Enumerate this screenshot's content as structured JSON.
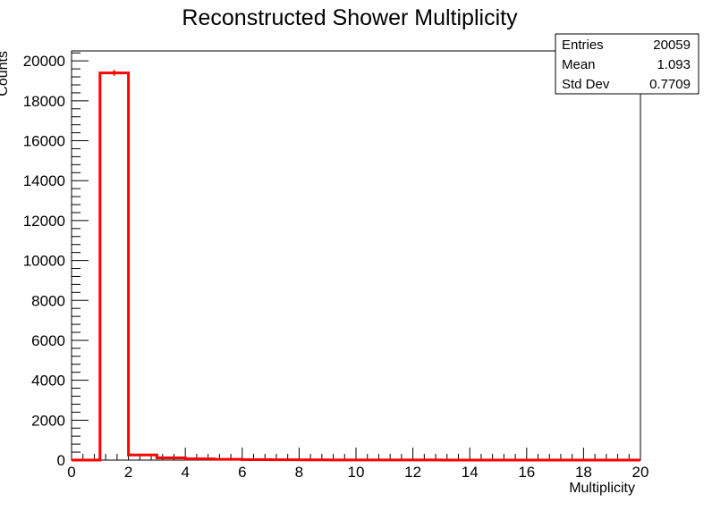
{
  "chart_data": {
    "type": "bar",
    "title": "Reconstructed Shower Multiplicity",
    "xlabel": "Multiplicity",
    "ylabel": "Counts",
    "xlim": [
      0,
      20
    ],
    "ylim": [
      0,
      20500
    ],
    "x_ticks": [
      0,
      2,
      4,
      6,
      8,
      10,
      12,
      14,
      16,
      18,
      20
    ],
    "y_ticks": [
      0,
      2000,
      4000,
      6000,
      8000,
      10000,
      12000,
      14000,
      16000,
      18000,
      20000
    ],
    "bin_width": 1,
    "bins": [
      {
        "x_low": 0,
        "value": 0
      },
      {
        "x_low": 1,
        "value": 19400
      },
      {
        "x_low": 2,
        "value": 260
      },
      {
        "x_low": 3,
        "value": 110
      },
      {
        "x_low": 4,
        "value": 60
      },
      {
        "x_low": 5,
        "value": 40
      },
      {
        "x_low": 6,
        "value": 20
      },
      {
        "x_low": 7,
        "value": 15
      },
      {
        "x_low": 8,
        "value": 10
      },
      {
        "x_low": 9,
        "value": 8
      },
      {
        "x_low": 10,
        "value": 5
      },
      {
        "x_low": 11,
        "value": 4
      },
      {
        "x_low": 12,
        "value": 3
      },
      {
        "x_low": 13,
        "value": 2
      },
      {
        "x_low": 14,
        "value": 2
      },
      {
        "x_low": 15,
        "value": 1
      },
      {
        "x_low": 16,
        "value": 1
      },
      {
        "x_low": 17,
        "value": 0
      },
      {
        "x_low": 18,
        "value": 0
      },
      {
        "x_low": 19,
        "value": 0
      }
    ],
    "error_bars": [
      {
        "x_center": 1.5,
        "value": 19400,
        "error": 140
      }
    ],
    "line_color": "#ff0000",
    "grid": false,
    "legend": "none",
    "stats_box": {
      "position": "top-right",
      "rows": [
        {
          "label": "Entries",
          "value": "20059"
        },
        {
          "label": "Mean",
          "value": "1.093"
        },
        {
          "label": "Std Dev",
          "value": "0.7709"
        }
      ]
    }
  }
}
